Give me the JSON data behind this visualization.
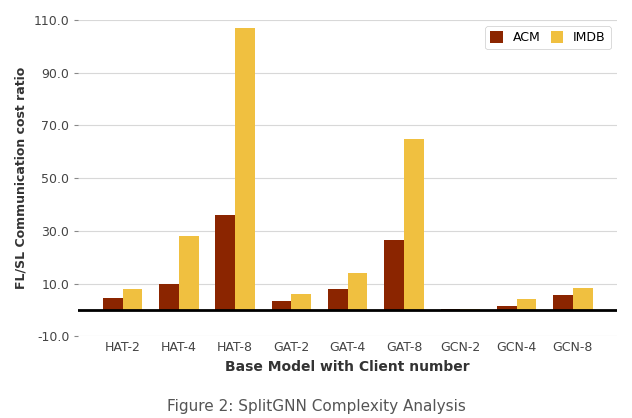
{
  "categories": [
    "HAT-2",
    "HAT-4",
    "HAT-8",
    "GAT-2",
    "GAT-4",
    "GAT-8",
    "GCN-2",
    "GCN-4",
    "GCN-8"
  ],
  "acm_values": [
    4.5,
    10.0,
    36.0,
    3.5,
    8.0,
    26.5,
    0.5,
    1.5,
    5.5
  ],
  "imdb_values": [
    8.0,
    28.0,
    107.0,
    6.0,
    14.0,
    65.0,
    0.5,
    4.0,
    8.5
  ],
  "acm_color": "#8B2500",
  "imdb_color": "#F0C040",
  "ylim": [
    -10.0,
    110.0
  ],
  "yticks": [
    -10.0,
    10.0,
    30.0,
    50.0,
    70.0,
    90.0,
    110.0
  ],
  "ytick_labels": [
    "-10.0",
    "10.0",
    "30.0",
    "50.0",
    "70.0",
    "90.0",
    "110.0"
  ],
  "ylabel": "FL/SL Communication cost ratio",
  "xlabel": "Base Model with Client number",
  "title": "Figure 2: SplitGNN Complexity Analysis",
  "legend_labels": [
    "ACM",
    "IMDB"
  ],
  "bar_width": 0.35,
  "background_color": "#ffffff",
  "grid_color": "#d8d8d8"
}
